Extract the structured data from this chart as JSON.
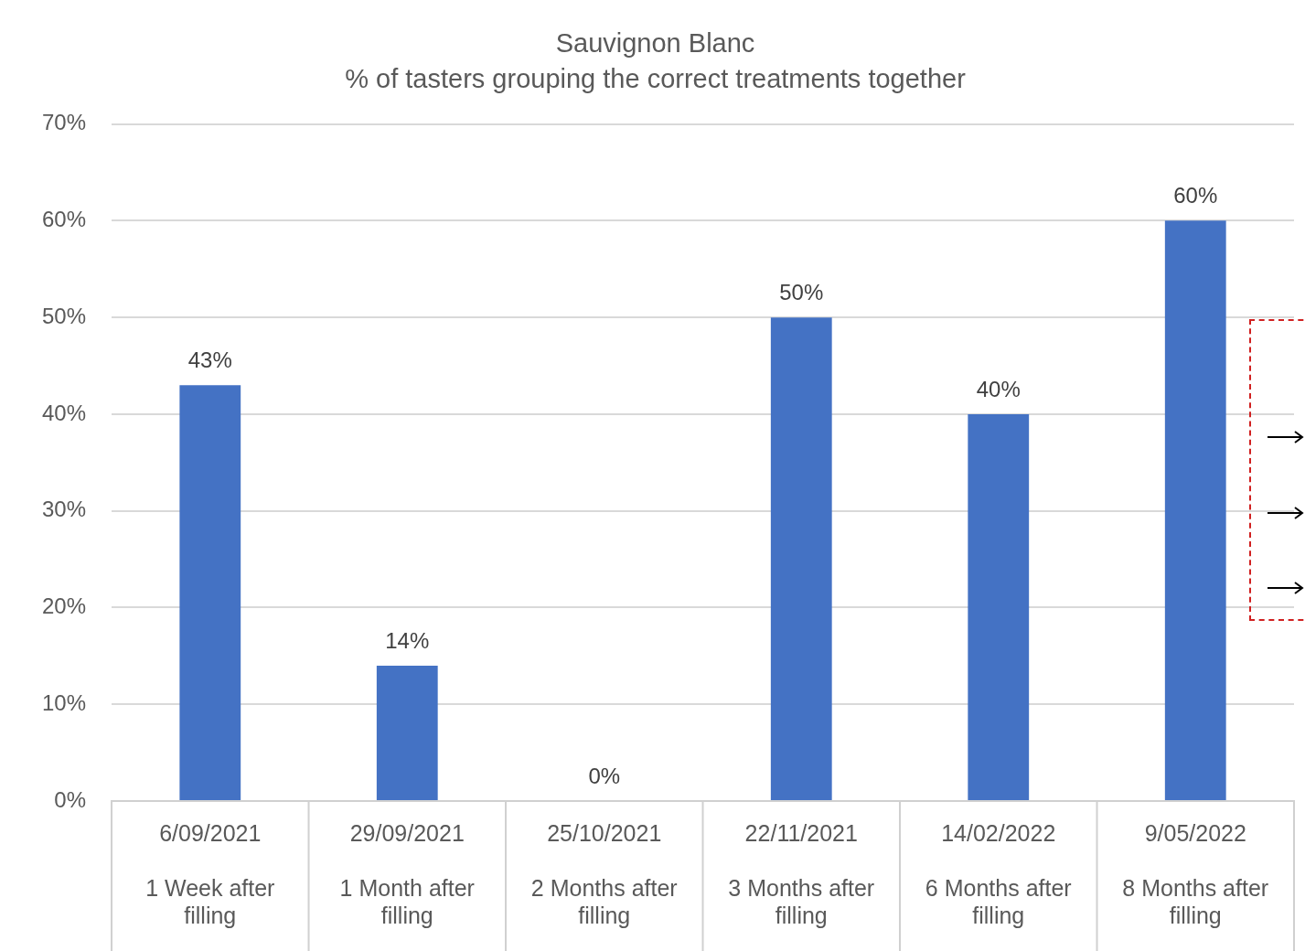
{
  "chart_data": {
    "type": "bar",
    "title": "Sauvignon Blanc",
    "subtitle": "% of tasters grouping the correct treatments together",
    "categories": [
      "6/09/2021\n1 Week after\nfilling",
      "29/09/2021\n1 Month after\nfilling",
      "25/10/2021\n2 Months after\nfilling",
      "22/11/2021\n3 Months after\nfilling",
      "14/02/2022\n6 Months after\nfilling",
      "9/05/2022\n8 Months after\nfilling"
    ],
    "values": [
      43,
      14,
      0,
      50,
      40,
      60
    ],
    "value_labels": [
      "43%",
      "14%",
      "0%",
      "50%",
      "40%",
      "60%"
    ],
    "color": "#4472c4",
    "ylim": [
      0,
      70
    ],
    "yticks": [
      {
        "value": 0,
        "label": "0%"
      },
      {
        "value": 10,
        "label": "10%"
      },
      {
        "value": 20,
        "label": "20%"
      },
      {
        "value": 30,
        "label": "30%"
      },
      {
        "value": 40,
        "label": "40%"
      },
      {
        "value": 50,
        "label": "50%"
      },
      {
        "value": 60,
        "label": "60%"
      },
      {
        "value": 70,
        "label": "70%"
      }
    ],
    "grid": "y"
  }
}
